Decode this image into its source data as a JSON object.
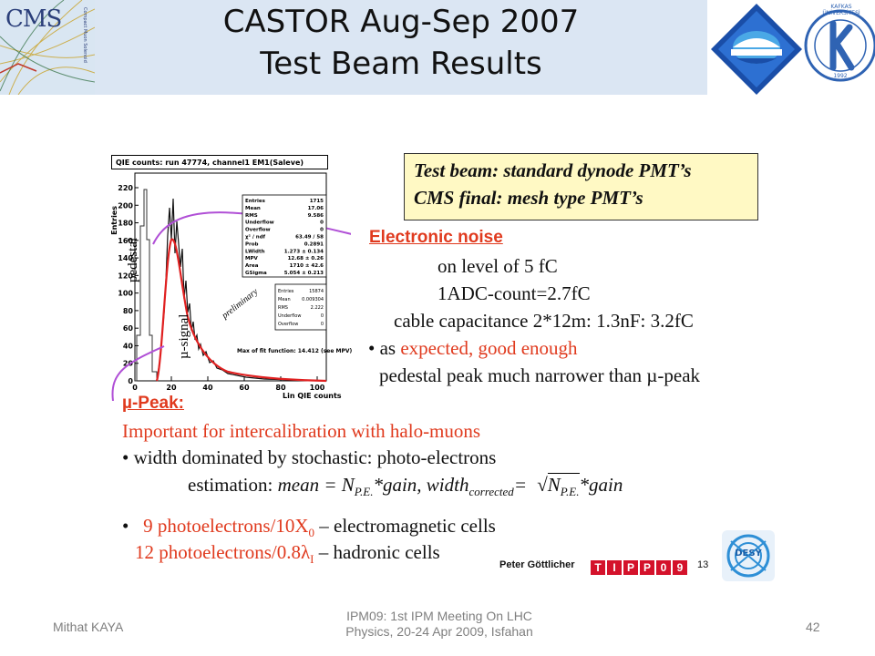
{
  "header": {
    "title_line1": "CASTOR Aug-Sep 2007",
    "title_line2": "Test Beam Results",
    "cms_logo_text": "CMS",
    "cms_logo_subtext": "Compact Muon Solenoid",
    "kafkas_logo_text": "KAFKAS ÜNİVERSİTESİ",
    "kafkas_logo_year": "1992"
  },
  "plot": {
    "title": "QIE counts: run 47774, channel1 EM1(Saleve)",
    "ylabel": "Entries",
    "xlabel": "Lin QIE counts",
    "preliminary": "preliminary",
    "pedestal_label": "pedestal",
    "signal_label": "µ-signal",
    "max_fit": "Max of fit function: 14.412 (see MPV)",
    "stats_main": [
      {
        "k": "Entries",
        "v": "1715"
      },
      {
        "k": "Mean",
        "v": "17.06"
      },
      {
        "k": "RMS",
        "v": "9.586"
      },
      {
        "k": "Underflow",
        "v": "0"
      },
      {
        "k": "Overflow",
        "v": "0"
      },
      {
        "k": "χ² / ndf",
        "v": "63.49 / 58"
      },
      {
        "k": "Prob",
        "v": "0.2891"
      },
      {
        "k": "LWidth",
        "v": "1.273 ± 0.134"
      },
      {
        "k": "MPV",
        "v": "12.68 ± 0.26"
      },
      {
        "k": "Area",
        "v": "1710 ± 42.6"
      },
      {
        "k": "GSigma",
        "v": "5.054 ± 0.213"
      }
    ],
    "stats_ped": [
      {
        "k": "Entries",
        "v": "15874"
      },
      {
        "k": "Mean",
        "v": "0.009304"
      },
      {
        "k": "RMS",
        "v": "2.222"
      },
      {
        "k": "Underflow",
        "v": "0"
      },
      {
        "k": "Overflow",
        "v": "0"
      }
    ],
    "yticks": [
      "220",
      "200",
      "180",
      "160",
      "140",
      "120",
      "100",
      "80",
      "60",
      "40",
      "20",
      "0"
    ],
    "xticks": [
      "0",
      "20",
      "40",
      "60",
      "80",
      "100"
    ]
  },
  "yellow_box": {
    "line1": "Test beam:  standard dynode PMT’s",
    "line2": " CMS final:  mesh type PMT’s"
  },
  "noise": {
    "heading": "Electronic noise",
    "line1": "on level of 5 fC",
    "line2": "1ADC-count=2.7fC",
    "line3": "cable capacitance 2*12m: 1.3nF:  3.2fC",
    "bullet_prefix": "• as ",
    "bullet_red": "expected, good enough",
    "line5": "pedestal peak much narrower than µ-peak"
  },
  "mu_peak": {
    "heading": "µ-Peak:",
    "line1": "Important for intercalibration with halo-muons",
    "line2": "• width dominated by stochastic:  photo-electrons",
    "est_prefix": "estimation: ",
    "est_formula1": "mean = N",
    "est_sub1": "P.E.",
    "est_formula2": "*gain,  width",
    "est_sub2": "corrected",
    "est_formula3": "=",
    "est_sqrt": "N",
    "est_sub3": "P.E.",
    "est_formula4": "*gain",
    "bullet3_red": "9 photoelectrons/10X",
    "bullet3_sub": "0",
    "bullet3_rest": " –  electromagnetic cells",
    "line4_red": "12 photoelectrons/0.8λ",
    "line4_sub": "I",
    "line4_rest": " – hadronic cells"
  },
  "credit": {
    "author": "Peter Göttlicher",
    "tipp": [
      "T",
      "I",
      "P",
      "P",
      "0",
      "9"
    ],
    "page": "13",
    "desy": "DESY"
  },
  "footer": {
    "left": "Mithat KAYA",
    "center_line1": "IPM09: 1st IPM Meeting On LHC",
    "center_line2": "Physics, 20-24 Apr 2009, Isfahan",
    "page_number": "42"
  },
  "colors": {
    "title_band": "#dbe6f3",
    "red_text": "#e03a1e",
    "yellow_box": "#fff9c4",
    "arrow": "#b04fd6"
  }
}
